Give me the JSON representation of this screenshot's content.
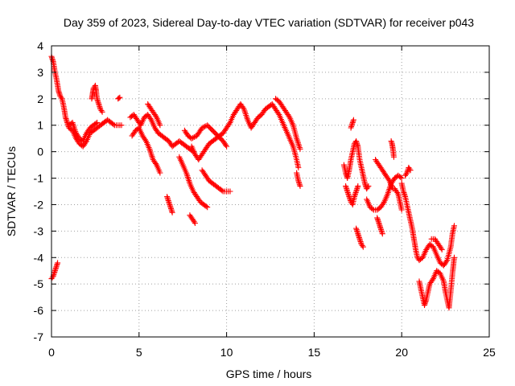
{
  "chart_data": {
    "type": "scatter",
    "title": "Day 359 of 2023, Sidereal Day-to-day VTEC variation (SDTVAR) for receiver p043",
    "xlabel": "GPS time / hours",
    "ylabel": "SDTVAR / TECUs",
    "xlim": [
      0,
      25
    ],
    "ylim": [
      -7,
      4
    ],
    "xticks": [
      0,
      5,
      10,
      15,
      20,
      25
    ],
    "yticks": [
      4,
      3,
      2,
      1,
      0,
      -1,
      -2,
      -3,
      -4,
      -5,
      -6,
      -7
    ],
    "grid": true,
    "marker": "+",
    "colors": {
      "series": "#ff0000",
      "grid": "#a0a0a0",
      "axis": "#000000"
    },
    "series": [
      {
        "name": "p043",
        "segments": [
          [
            [
              0.0,
              3.6
            ],
            [
              0.1,
              3.4
            ],
            [
              0.2,
              3.0
            ],
            [
              0.3,
              2.7
            ],
            [
              0.4,
              2.3
            ],
            [
              0.5,
              2.1
            ],
            [
              0.6,
              2.0
            ],
            [
              0.7,
              1.7
            ],
            [
              0.8,
              1.3
            ],
            [
              0.9,
              1.1
            ],
            [
              1.0,
              0.9
            ],
            [
              1.2,
              0.8
            ],
            [
              1.4,
              0.5
            ],
            [
              1.6,
              0.3
            ],
            [
              1.8,
              0.2
            ],
            [
              2.0,
              0.4
            ],
            [
              2.2,
              0.7
            ],
            [
              2.4,
              0.8
            ],
            [
              2.6,
              0.9
            ],
            [
              2.8,
              1.0
            ],
            [
              3.0,
              1.1
            ],
            [
              3.2,
              1.2
            ],
            [
              3.4,
              1.1
            ],
            [
              3.6,
              1.0
            ],
            [
              3.8,
              1.0
            ],
            [
              4.0,
              1.0
            ]
          ],
          [
            [
              1.0,
              1.0
            ],
            [
              1.2,
              1.1
            ],
            [
              1.4,
              0.7
            ],
            [
              1.6,
              0.5
            ],
            [
              1.8,
              0.4
            ],
            [
              2.0,
              0.7
            ],
            [
              2.2,
              0.9
            ],
            [
              2.4,
              1.0
            ],
            [
              2.6,
              1.1
            ]
          ],
          [
            [
              2.3,
              2.0
            ],
            [
              2.35,
              2.2
            ],
            [
              2.4,
              2.4
            ],
            [
              2.5,
              2.5
            ],
            [
              2.55,
              2.3
            ],
            [
              2.6,
              2.0
            ],
            [
              2.7,
              1.8
            ],
            [
              2.8,
              1.6
            ],
            [
              2.9,
              1.5
            ]
          ],
          [
            [
              3.8,
              2.0
            ],
            [
              3.9,
              2.05
            ]
          ],
          [
            [
              0.0,
              -4.8
            ],
            [
              0.1,
              -4.7
            ],
            [
              0.2,
              -4.5
            ],
            [
              0.3,
              -4.3
            ],
            [
              0.35,
              -4.2
            ]
          ],
          [
            [
              4.5,
              1.3
            ],
            [
              4.7,
              1.4
            ],
            [
              4.9,
              1.2
            ],
            [
              5.1,
              1.0
            ],
            [
              5.3,
              1.3
            ],
            [
              5.5,
              1.4
            ],
            [
              5.7,
              1.2
            ],
            [
              5.9,
              0.9
            ],
            [
              6.1,
              0.7
            ],
            [
              6.3,
              0.6
            ],
            [
              6.5,
              0.5
            ],
            [
              6.7,
              0.4
            ],
            [
              6.9,
              0.2
            ],
            [
              7.1,
              0.3
            ],
            [
              7.3,
              0.4
            ],
            [
              7.5,
              0.3
            ],
            [
              7.7,
              0.2
            ],
            [
              7.9,
              0.1
            ],
            [
              8.1,
              0.0
            ]
          ],
          [
            [
              4.6,
              0.6
            ],
            [
              4.8,
              0.8
            ],
            [
              5.0,
              0.9
            ],
            [
              5.2,
              0.6
            ],
            [
              5.4,
              0.4
            ],
            [
              5.6,
              0.1
            ],
            [
              5.8,
              -0.3
            ],
            [
              6.0,
              -0.5
            ],
            [
              6.2,
              -0.8
            ]
          ],
          [
            [
              5.5,
              1.8
            ],
            [
              5.6,
              1.7
            ],
            [
              5.8,
              1.5
            ],
            [
              6.0,
              1.3
            ],
            [
              6.2,
              1.0
            ]
          ],
          [
            [
              6.6,
              -1.7
            ],
            [
              6.7,
              -1.9
            ],
            [
              6.8,
              -2.1
            ],
            [
              6.9,
              -2.3
            ]
          ],
          [
            [
              7.3,
              -0.2
            ],
            [
              7.5,
              -0.5
            ],
            [
              7.7,
              -0.8
            ],
            [
              7.9,
              -1.2
            ],
            [
              8.1,
              -1.5
            ],
            [
              8.3,
              -1.7
            ],
            [
              8.5,
              -1.9
            ],
            [
              8.7,
              -2.0
            ],
            [
              8.9,
              -2.1
            ]
          ],
          [
            [
              7.9,
              -2.4
            ],
            [
              8.0,
              -2.5
            ],
            [
              8.1,
              -2.6
            ],
            [
              8.2,
              -2.7
            ]
          ],
          [
            [
              8.0,
              0.2
            ],
            [
              8.2,
              -0.1
            ],
            [
              8.4,
              -0.3
            ],
            [
              8.6,
              -0.1
            ],
            [
              8.8,
              0.1
            ],
            [
              9.0,
              0.3
            ],
            [
              9.2,
              0.4
            ],
            [
              9.4,
              0.5
            ],
            [
              9.6,
              0.6
            ],
            [
              9.8,
              0.7
            ],
            [
              10.0,
              0.9
            ],
            [
              10.2,
              1.1
            ],
            [
              10.4,
              1.4
            ],
            [
              10.6,
              1.6
            ],
            [
              10.8,
              1.8
            ],
            [
              11.0,
              1.6
            ],
            [
              11.2,
              1.2
            ],
            [
              11.4,
              0.9
            ],
            [
              11.6,
              1.1
            ],
            [
              11.8,
              1.3
            ],
            [
              12.0,
              1.4
            ],
            [
              12.2,
              1.6
            ],
            [
              12.4,
              1.7
            ],
            [
              12.6,
              1.8
            ],
            [
              12.8,
              1.6
            ],
            [
              13.0,
              1.4
            ],
            [
              13.2,
              1.1
            ],
            [
              13.4,
              0.8
            ],
            [
              13.6,
              0.5
            ],
            [
              13.8,
              0.2
            ],
            [
              14.0,
              -0.3
            ],
            [
              14.1,
              -0.6
            ]
          ],
          [
            [
              7.6,
              0.8
            ],
            [
              7.8,
              0.6
            ],
            [
              8.0,
              0.5
            ],
            [
              8.3,
              0.6
            ],
            [
              8.6,
              0.9
            ],
            [
              8.9,
              1.0
            ],
            [
              9.2,
              0.8
            ],
            [
              9.5,
              0.6
            ],
            [
              9.8,
              0.4
            ],
            [
              10.0,
              0.2
            ]
          ],
          [
            [
              8.6,
              -0.7
            ],
            [
              8.8,
              -0.9
            ],
            [
              9.0,
              -1.1
            ],
            [
              9.2,
              -1.2
            ],
            [
              9.4,
              -1.3
            ],
            [
              9.6,
              -1.4
            ],
            [
              9.8,
              -1.5
            ],
            [
              10.0,
              -1.5
            ],
            [
              10.2,
              -1.5
            ]
          ],
          [
            [
              12.8,
              2.0
            ],
            [
              13.0,
              1.9
            ],
            [
              13.2,
              1.7
            ],
            [
              13.4,
              1.5
            ],
            [
              13.6,
              1.3
            ],
            [
              13.8,
              1.0
            ],
            [
              14.0,
              0.5
            ],
            [
              14.2,
              0.1
            ]
          ],
          [
            [
              14.0,
              -0.8
            ],
            [
              14.1,
              -1.1
            ],
            [
              14.2,
              -1.3
            ]
          ],
          [
            [
              16.7,
              -0.5
            ],
            [
              16.8,
              -0.8
            ],
            [
              16.9,
              -1.0
            ],
            [
              17.0,
              -0.7
            ],
            [
              17.1,
              -0.3
            ],
            [
              17.2,
              0.0
            ],
            [
              17.3,
              0.3
            ],
            [
              17.4,
              0.4
            ],
            [
              17.5,
              0.2
            ],
            [
              17.6,
              -0.3
            ],
            [
              17.7,
              -0.6
            ],
            [
              17.8,
              -0.9
            ],
            [
              17.9,
              -1.2
            ],
            [
              18.0,
              -1.4
            ],
            [
              18.1,
              -1.3
            ]
          ],
          [
            [
              16.8,
              -1.3
            ],
            [
              16.9,
              -1.5
            ],
            [
              17.0,
              -1.7
            ],
            [
              17.1,
              -1.9
            ],
            [
              17.2,
              -2.0
            ],
            [
              17.3,
              -1.7
            ],
            [
              17.4,
              -1.5
            ],
            [
              17.5,
              -1.3
            ]
          ],
          [
            [
              17.1,
              0.9
            ],
            [
              17.2,
              1.1
            ],
            [
              17.25,
              1.2
            ]
          ],
          [
            [
              17.4,
              -2.9
            ],
            [
              17.5,
              -3.1
            ],
            [
              17.6,
              -3.3
            ],
            [
              17.7,
              -3.5
            ],
            [
              17.8,
              -3.6
            ]
          ],
          [
            [
              18.0,
              -1.8
            ],
            [
              18.2,
              -2.1
            ],
            [
              18.4,
              -2.2
            ],
            [
              18.6,
              -2.2
            ],
            [
              18.8,
              -2.1
            ],
            [
              19.0,
              -1.9
            ],
            [
              19.2,
              -1.6
            ],
            [
              19.4,
              -1.2
            ],
            [
              19.6,
              -1.0
            ],
            [
              19.8,
              -0.9
            ],
            [
              20.0,
              -1.0
            ]
          ],
          [
            [
              18.5,
              -0.3
            ],
            [
              18.7,
              -0.5
            ],
            [
              18.9,
              -0.7
            ],
            [
              19.1,
              -0.9
            ],
            [
              19.3,
              -1.1
            ],
            [
              19.5,
              -1.4
            ]
          ],
          [
            [
              18.6,
              -2.5
            ],
            [
              18.7,
              -2.7
            ],
            [
              18.8,
              -2.9
            ],
            [
              18.9,
              -3.1
            ]
          ],
          [
            [
              19.4,
              0.4
            ],
            [
              19.45,
              0.3
            ],
            [
              19.5,
              0.1
            ],
            [
              19.55,
              -0.2
            ]
          ],
          [
            [
              19.6,
              -1.4
            ],
            [
              19.8,
              -1.6
            ],
            [
              19.9,
              -1.9
            ],
            [
              20.0,
              -2.2
            ]
          ],
          [
            [
              20.0,
              -1.2
            ],
            [
              20.1,
              -1.5
            ],
            [
              20.2,
              -1.7
            ],
            [
              20.3,
              -2.0
            ],
            [
              20.4,
              -2.3
            ],
            [
              20.5,
              -2.6
            ],
            [
              20.6,
              -2.9
            ],
            [
              20.7,
              -3.3
            ],
            [
              20.8,
              -3.7
            ],
            [
              20.9,
              -4.0
            ],
            [
              21.0,
              -4.1
            ],
            [
              21.2,
              -4.0
            ],
            [
              21.4,
              -3.7
            ],
            [
              21.6,
              -3.5
            ],
            [
              21.8,
              -3.6
            ],
            [
              22.0,
              -3.9
            ],
            [
              22.2,
              -4.2
            ],
            [
              22.4,
              -4.3
            ],
            [
              22.6,
              -4.1
            ],
            [
              22.8,
              -3.6
            ],
            [
              22.9,
              -3.1
            ],
            [
              23.0,
              -2.8
            ]
          ],
          [
            [
              20.2,
              -0.9
            ],
            [
              20.3,
              -0.8
            ],
            [
              20.4,
              -0.6
            ],
            [
              20.5,
              -0.7
            ]
          ],
          [
            [
              21.0,
              -4.9
            ],
            [
              21.1,
              -5.2
            ],
            [
              21.2,
              -5.5
            ],
            [
              21.3,
              -5.8
            ],
            [
              21.4,
              -5.6
            ],
            [
              21.5,
              -5.3
            ],
            [
              21.6,
              -5.0
            ],
            [
              21.8,
              -4.8
            ],
            [
              22.0,
              -4.5
            ],
            [
              22.2,
              -4.6
            ],
            [
              22.4,
              -4.9
            ],
            [
              22.5,
              -5.3
            ],
            [
              22.6,
              -5.6
            ],
            [
              22.7,
              -5.9
            ],
            [
              22.8,
              -5.3
            ],
            [
              22.9,
              -4.6
            ],
            [
              23.0,
              -4.0
            ]
          ],
          [
            [
              21.7,
              -3.3
            ],
            [
              21.9,
              -3.3
            ],
            [
              22.1,
              -3.5
            ],
            [
              22.3,
              -3.7
            ]
          ]
        ]
      }
    ]
  }
}
